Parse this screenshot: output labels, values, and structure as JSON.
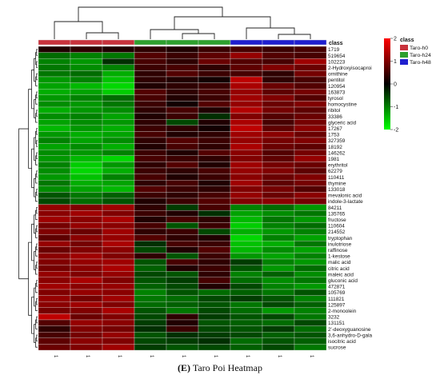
{
  "caption": {
    "panel": "(E)",
    "text": "Taro Poi Heatmap"
  },
  "chart_data": {
    "type": "heatmap",
    "title": "",
    "rows": [
      "1719",
      "519654",
      "102223",
      "2-Hydroxyisocaproi",
      "ornithine",
      "pentitol",
      "120954",
      "163873",
      "tyrosol",
      "homocystine",
      "ribitol",
      "33386",
      "glyceric acid",
      "17267",
      "1753",
      "327359",
      "18192",
      "146262",
      "1981",
      "erythritol",
      "62279",
      "110411",
      "thymine",
      "133018",
      "mevalonic acid",
      "indole-3-lactate",
      "84211",
      "135765",
      "fructose",
      "110604",
      "214552",
      "tryptophan",
      "inulotriose",
      "raffinose",
      "1-kestose",
      "malic acid",
      "citric acid",
      "maleic acid",
      "gluconic acid",
      "472871",
      "105769",
      "111821",
      "125897",
      "2-monoolein",
      "3232",
      "131151",
      "2'-deoxyguanosine",
      "3,6-anhydro-D-gala",
      "isocitric acid",
      "sucrose"
    ],
    "columns": [
      "1",
      "1",
      "1",
      "1",
      "1",
      "1",
      "1",
      "1",
      "1"
    ],
    "column_groups": [
      "Taro-h0",
      "Taro-h0",
      "Taro-h0",
      "Taro-h24",
      "Taro-h24",
      "Taro-h24",
      "Taro-h48",
      "Taro-h48",
      "Taro-h48"
    ],
    "class_label": "class",
    "legend": {
      "title": "class",
      "entries": [
        {
          "name": "Taro-h0",
          "color": "#c8323c"
        },
        {
          "name": "Taro-h24",
          "color": "#2ea02e"
        },
        {
          "name": "Taro-h48",
          "color": "#1f1fcf"
        }
      ]
    },
    "color_scale": {
      "ticks": [
        2,
        1,
        0,
        -1,
        -2
      ],
      "low": "#00ff00",
      "mid": "#000000",
      "high": "#ff0000",
      "range": [
        -2,
        2
      ]
    },
    "values": [
      [
        0.2,
        0.3,
        0.2,
        0.3,
        0.2,
        0.4,
        0.5,
        0.4,
        0.5
      ],
      [
        -0.8,
        -1.0,
        -0.9,
        0.6,
        0.4,
        0.7,
        1.2,
        0.6,
        0.5
      ],
      [
        -1.0,
        -1.2,
        -0.3,
        0.5,
        0.3,
        0.8,
        0.6,
        0.5,
        1.3
      ],
      [
        -0.9,
        -1.1,
        -1.0,
        0.4,
        0.5,
        0.3,
        0.7,
        1.0,
        0.8
      ],
      [
        -0.9,
        -0.8,
        -1.4,
        0.3,
        0.6,
        0.4,
        0.5,
        0.3,
        0.9
      ],
      [
        -1.2,
        -1.0,
        -1.6,
        0.3,
        0.2,
        0.1,
        1.6,
        0.3,
        0.5
      ],
      [
        -1.3,
        -1.5,
        -1.8,
        0.2,
        0.3,
        0.4,
        1.4,
        0.8,
        0.6
      ],
      [
        -1.4,
        -1.3,
        -1.7,
        0.6,
        0.3,
        0.5,
        1.2,
        0.7,
        0.9
      ],
      [
        -1.2,
        -1.0,
        -0.8,
        0.5,
        0.2,
        0.4,
        1.3,
        1.0,
        0.6
      ],
      [
        -1.1,
        -1.2,
        -0.9,
        0.4,
        0.1,
        0.6,
        1.2,
        0.8,
        1.0
      ],
      [
        -1.4,
        -1.2,
        -1.1,
        0.3,
        0.5,
        0.2,
        1.5,
        0.9,
        0.7
      ],
      [
        -1.1,
        -1.0,
        -1.3,
        0.2,
        0.4,
        -0.3,
        1.0,
        0.6,
        0.8
      ],
      [
        -1.3,
        -1.1,
        -1.2,
        0.3,
        -0.5,
        0.2,
        1.4,
        0.5,
        0.9
      ],
      [
        -1.5,
        -1.2,
        -1.4,
        0.4,
        0.3,
        0.1,
        1.6,
        0.7,
        1.1
      ],
      [
        -1.2,
        -1.4,
        -1.3,
        0.5,
        0.2,
        0.3,
        1.3,
        1.1,
        0.8
      ],
      [
        -1.0,
        -1.3,
        -1.1,
        0.3,
        0.6,
        0.4,
        1.2,
        0.9,
        1.0
      ],
      [
        -1.3,
        -1.1,
        -1.4,
        0.2,
        0.5,
        0.3,
        1.4,
        0.8,
        0.7
      ],
      [
        -1.1,
        -1.2,
        -1.0,
        0.4,
        0.2,
        0.6,
        1.1,
        0.6,
        0.9
      ],
      [
        -1.2,
        -1.5,
        -1.8,
        0.5,
        0.4,
        0.3,
        1.0,
        0.7,
        1.2
      ],
      [
        -1.0,
        -1.7,
        -1.2,
        0.3,
        0.6,
        0.2,
        1.3,
        0.9,
        0.8
      ],
      [
        -1.1,
        -1.8,
        -1.4,
        0.4,
        0.3,
        0.5,
        1.2,
        1.0,
        0.7
      ],
      [
        -1.2,
        -1.6,
        -1.0,
        0.5,
        0.2,
        0.4,
        1.1,
        0.8,
        1.0
      ],
      [
        -0.9,
        -1.4,
        -1.3,
        0.3,
        0.5,
        0.2,
        1.3,
        0.7,
        0.9
      ],
      [
        -1.1,
        -1.3,
        -1.5,
        0.6,
        0.4,
        0.3,
        1.0,
        0.9,
        0.6
      ],
      [
        -0.6,
        -0.9,
        -0.7,
        0.4,
        0.3,
        0.5,
        1.2,
        0.8,
        1.1
      ],
      [
        -0.5,
        -0.8,
        -0.6,
        0.2,
        0.4,
        0.6,
        1.0,
        1.1,
        0.9
      ],
      [
        1.2,
        1.0,
        1.3,
        0.3,
        -0.4,
        0.5,
        -1.0,
        -0.8,
        -1.2
      ],
      [
        1.1,
        1.3,
        1.0,
        0.4,
        0.2,
        -0.3,
        -1.3,
        -1.1,
        -0.9
      ],
      [
        1.3,
        1.1,
        1.4,
        0.2,
        0.5,
        0.3,
        -1.5,
        -0.9,
        -1.2
      ],
      [
        0.9,
        1.2,
        1.1,
        0.5,
        -0.6,
        0.4,
        -1.7,
        -1.0,
        -0.8
      ],
      [
        1.0,
        0.8,
        1.3,
        0.3,
        0.4,
        -0.5,
        -1.4,
        -1.2,
        -1.0
      ],
      [
        0.7,
        1.1,
        1.2,
        0.6,
        0.3,
        0.2,
        -1.8,
        -1.0,
        -1.3
      ],
      [
        1.2,
        0.9,
        1.4,
        -0.3,
        0.5,
        0.4,
        -1.6,
        -1.4,
        -0.9
      ],
      [
        0.8,
        1.0,
        1.1,
        -0.5,
        0.2,
        0.6,
        -1.5,
        -1.1,
        -1.3
      ],
      [
        1.1,
        1.3,
        1.0,
        0.3,
        -0.6,
        0.4,
        -1.2,
        -1.3,
        -1.0
      ],
      [
        1.0,
        1.2,
        1.3,
        -0.6,
        0.5,
        0.3,
        -0.4,
        -1.0,
        -1.2
      ],
      [
        0.9,
        1.1,
        1.4,
        -0.7,
        0.2,
        0.4,
        -0.6,
        -1.2,
        -0.8
      ],
      [
        1.2,
        1.0,
        1.2,
        -0.5,
        -0.6,
        0.3,
        -1.0,
        -0.7,
        -1.1
      ],
      [
        1.1,
        1.4,
        1.0,
        -0.6,
        -0.4,
        0.5,
        -0.8,
        -1.1,
        -0.9
      ],
      [
        1.3,
        1.1,
        1.2,
        -0.7,
        -0.5,
        0.2,
        -0.5,
        -1.0,
        -1.2
      ],
      [
        1.0,
        1.2,
        1.1,
        -1.0,
        -0.6,
        -0.8,
        -0.7,
        -0.9,
        -0.6
      ],
      [
        1.2,
        0.9,
        1.3,
        -0.9,
        -0.8,
        -0.5,
        -0.4,
        -0.6,
        -1.0
      ],
      [
        1.1,
        1.3,
        1.0,
        -0.8,
        -0.7,
        -0.6,
        -0.9,
        -0.5,
        -0.7
      ],
      [
        0.9,
        1.0,
        1.4,
        -0.6,
        -0.9,
        -0.5,
        -0.8,
        -1.2,
        -1.0
      ],
      [
        1.6,
        0.8,
        1.0,
        -0.5,
        0.3,
        -0.4,
        -0.6,
        -0.5,
        -0.9
      ],
      [
        0.6,
        1.2,
        1.1,
        -0.4,
        0.2,
        -0.6,
        -0.7,
        -0.8,
        -0.5
      ],
      [
        0.3,
        1.0,
        0.9,
        -0.3,
        0.4,
        -0.5,
        -0.6,
        -0.4,
        -0.8
      ],
      [
        0.5,
        0.9,
        1.2,
        -0.6,
        -0.3,
        -0.4,
        -0.5,
        -0.7,
        -0.6
      ],
      [
        0.7,
        1.1,
        1.0,
        -0.5,
        -0.4,
        -0.3,
        -0.8,
        -0.6,
        -0.7
      ],
      [
        0.8,
        1.0,
        1.3,
        -0.4,
        -0.6,
        -0.5,
        -0.7,
        -0.5,
        -0.9
      ]
    ]
  }
}
